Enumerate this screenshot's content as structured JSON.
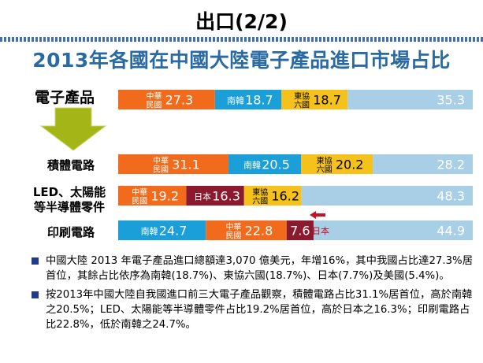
{
  "slide": {
    "title": "出口(2/2)",
    "subtitle": "2013年各國在中國大陸電子產品進口市場占比"
  },
  "colors": {
    "taiwan": "#f26b1d",
    "korea": "#1a9fd8",
    "asean": "#f4c21a",
    "japan": "#8b1a2e",
    "other": "#a9cfe6",
    "arrow": "#a4b518",
    "bullet": "#1e3c8a"
  },
  "chart_data": {
    "type": "bar",
    "orientation": "horizontal",
    "stacked": true,
    "title": "2013年各國在中國大陸電子產品進口市場占比",
    "unit": "%",
    "rows": [
      {
        "label": "電子產品",
        "segments": [
          {
            "name": "中華民國",
            "value": 27.3,
            "color": "#f26b1d"
          },
          {
            "name": "南韓",
            "value": 18.7,
            "color": "#1a9fd8"
          },
          {
            "name": "東協六國",
            "value": 18.7,
            "color": "#f4c21a"
          },
          {
            "name": "",
            "value": 35.3,
            "color": "#a9cfe6"
          }
        ]
      },
      {
        "label": "積體電路",
        "segments": [
          {
            "name": "中華民國",
            "value": 31.1,
            "color": "#f26b1d"
          },
          {
            "name": "南韓",
            "value": 20.5,
            "color": "#1a9fd8"
          },
          {
            "name": "東協六國",
            "value": 20.2,
            "color": "#f4c21a"
          },
          {
            "name": "",
            "value": 28.2,
            "color": "#a9cfe6"
          }
        ]
      },
      {
        "label": "LED、太陽能等半導體零件",
        "segments": [
          {
            "name": "中華民國",
            "value": 19.2,
            "color": "#f26b1d"
          },
          {
            "name": "日本",
            "value": 16.3,
            "color": "#8b1a2e"
          },
          {
            "name": "東協六國",
            "value": 16.2,
            "color": "#f4c21a"
          },
          {
            "name": "",
            "value": 48.3,
            "color": "#a9cfe6"
          }
        ]
      },
      {
        "label": "印刷電路",
        "segments": [
          {
            "name": "南韓",
            "value": 24.7,
            "color": "#1a9fd8"
          },
          {
            "name": "中華民國",
            "value": 22.8,
            "color": "#f26b1d"
          },
          {
            "name": "",
            "value": 7.6,
            "color": "#8b1a2e"
          },
          {
            "name": "",
            "value": 44.9,
            "color": "#a9cfe6"
          }
        ]
      }
    ],
    "annotation": {
      "text": "日本",
      "points_to": "印刷電路 7.6"
    }
  },
  "row_labels": {
    "r0": "電子產品",
    "r1": "積體電路",
    "r2a": "LED、太陽能",
    "r2b": "等半導體零件",
    "r3": "印刷電路"
  },
  "bullets": [
    "中國大陸 2013 年電子產品進口總額達3,070 億美元，年增16%，其中我國占比達27.3%居首位，其餘占比依序為南韓(18.7%)、東協六國(18.7%)、日本(7.7%)及美國(5.4%)。",
    "按2013年中國大陸自我國進口前三大電子產品觀察，積體電路占比31.1%居首位，高於南韓之20.5%；LED、太陽能等半導體零件占比19.2%居首位，高於日本之16.3%；印刷電路占比22.8%，低於南韓之24.7%。"
  ]
}
